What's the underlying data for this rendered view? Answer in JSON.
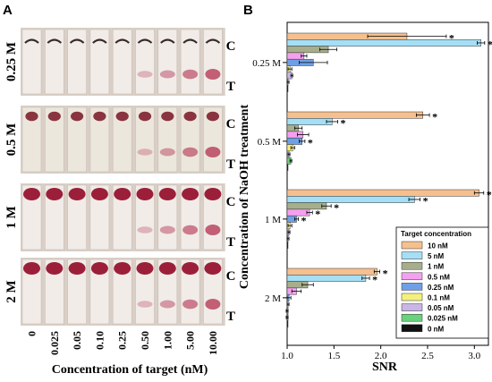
{
  "panel_a": {
    "letter": "A",
    "row_labels": [
      "0.25 M",
      "0.5 M",
      "1 M",
      "2 M"
    ],
    "control_line": "C",
    "test_line": "T",
    "x_ticks": [
      "0",
      "0.025",
      "0.05",
      "0.10",
      "0.25",
      "0.50",
      "1.00",
      "5.00",
      "10.00"
    ],
    "xlabel": "Concentration of target (nM)"
  },
  "chart_data": {
    "type": "bar",
    "orientation": "horizontal",
    "panel_letter": "B",
    "categories": [
      "0.25 M",
      "0.5 M",
      "1 M",
      "2 M"
    ],
    "ylabel": "Concentration of NaOH treatment",
    "xlabel": "SNR",
    "xlim": [
      1.0,
      3.15
    ],
    "xticks": [
      "1.0",
      "1.5",
      "2.0",
      "2.5",
      "3.0"
    ],
    "legend_title": "Target concentration",
    "legend_position": "bottom-right",
    "significance_marker": "*",
    "series": [
      {
        "name": "10 nM",
        "color": "#f6c08e",
        "values": [
          2.28,
          2.45,
          3.05,
          1.96
        ],
        "errors": [
          0.42,
          0.07,
          0.05,
          0.03
        ],
        "significant": [
          true,
          true,
          true,
          true
        ]
      },
      {
        "name": "5 nM",
        "color": "#a5dff6",
        "values": [
          3.07,
          1.48,
          2.36,
          1.84
        ],
        "errors": [
          0.04,
          0.06,
          0.06,
          0.04
        ],
        "significant": [
          true,
          true,
          true,
          true
        ]
      },
      {
        "name": "1 nM",
        "color": "#a7ae8c",
        "values": [
          1.44,
          1.12,
          1.42,
          1.22
        ],
        "errors": [
          0.09,
          0.04,
          0.05,
          0.06
        ],
        "significant": [
          false,
          false,
          true,
          false
        ]
      },
      {
        "name": "0.5 nM",
        "color": "#f4a0ef",
        "values": [
          1.18,
          1.17,
          1.24,
          1.1
        ],
        "errors": [
          0.03,
          0.06,
          0.03,
          0.05
        ],
        "significant": [
          false,
          false,
          true,
          false
        ]
      },
      {
        "name": "0.25 nM",
        "color": "#6fa0e6",
        "values": [
          1.28,
          1.16,
          1.1,
          1.02
        ],
        "errors": [
          0.15,
          0.03,
          0.02,
          0.02
        ],
        "significant": [
          false,
          true,
          true,
          false
        ]
      },
      {
        "name": "0.1 nM",
        "color": "#f4f07e",
        "values": [
          1.03,
          1.06,
          1.03,
          1.01
        ],
        "errors": [
          0.02,
          0.02,
          0.02,
          0.01
        ],
        "significant": [
          false,
          false,
          false,
          false
        ]
      },
      {
        "name": "0.05 nM",
        "color": "#c9b6e6",
        "values": [
          1.05,
          1.02,
          1.02,
          1.0
        ],
        "errors": [
          0.01,
          0.01,
          0.01,
          0.01
        ],
        "significant": [
          false,
          false,
          false,
          false
        ]
      },
      {
        "name": "0.025 nM",
        "color": "#6ad17c",
        "values": [
          1.01,
          1.04,
          1.01,
          1.0
        ],
        "errors": [
          0.01,
          0.01,
          0.01,
          0.01
        ],
        "significant": [
          false,
          false,
          false,
          false
        ]
      },
      {
        "name": "0 nM",
        "color": "#111111",
        "values": [
          1.0,
          1.0,
          1.0,
          1.0
        ],
        "errors": [
          0,
          0,
          0,
          0
        ],
        "significant": [
          false,
          false,
          false,
          false
        ]
      }
    ]
  }
}
